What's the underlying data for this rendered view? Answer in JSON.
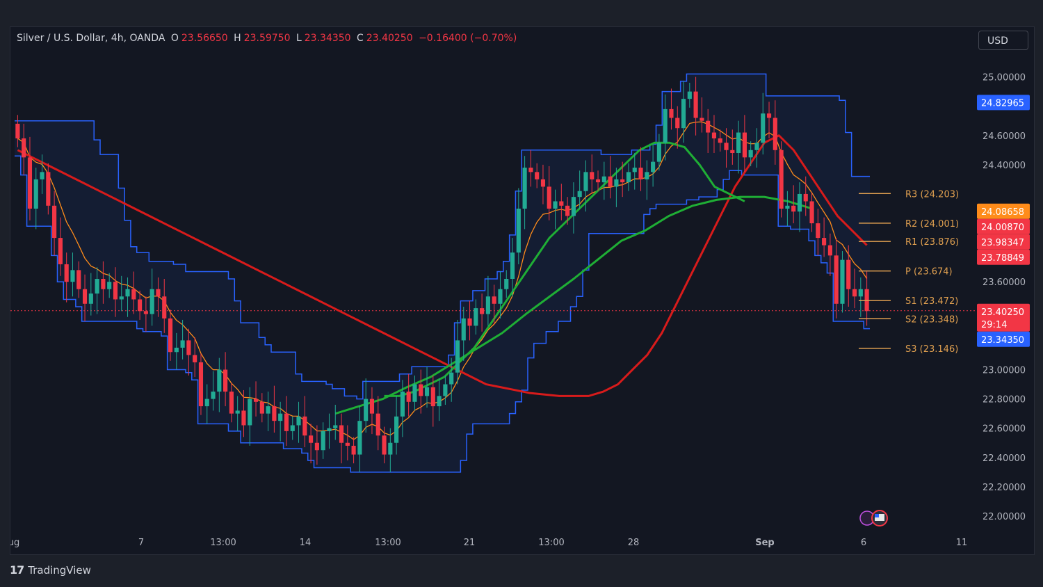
{
  "header": {
    "symbol": "Silver / U.S. Dollar, 4h, OANDA",
    "open_label": "O",
    "open": "23.56650",
    "high_label": "H",
    "high": "23.59750",
    "low_label": "L",
    "low": "23.34350",
    "close_label": "C",
    "close": "23.40250",
    "change": "−0.16400 (−0.70%)"
  },
  "currency": "USD",
  "footer": {
    "brand": "TradingView"
  },
  "colors": {
    "background": "#131722",
    "up": "#22ab94",
    "down": "#f23645",
    "band": "#2962ff",
    "ema_red": "#d81b1b",
    "ema_orange": "#ff8c1a",
    "ema_green": "#1fae35",
    "pivot": "#e0a050"
  },
  "chart_data": {
    "type": "candlestick",
    "price_axis": {
      "range": [
        21.9,
        25.15
      ],
      "ticks": [
        "25.00000",
        "24.60000",
        "24.40000",
        "23.60000",
        "23.00000",
        "22.80000",
        "22.60000",
        "22.40000",
        "22.20000",
        "22.00000"
      ]
    },
    "time_axis": {
      "labels": [
        "ug",
        "7",
        "13:00",
        "14",
        "13:00",
        "21",
        "13:00",
        "28",
        "Sep",
        "6",
        "11"
      ]
    },
    "pivots": [
      {
        "label": "R3 (24.203)",
        "value": 24.203
      },
      {
        "label": "R2 (24.001)",
        "value": 24.001
      },
      {
        "label": "R1 (23.876)",
        "value": 23.876
      },
      {
        "label": "P (23.674)",
        "value": 23.674
      },
      {
        "label": "S1 (23.472)",
        "value": 23.472
      },
      {
        "label": "S2 (23.348)",
        "value": 23.348
      },
      {
        "label": "S3 (23.146)",
        "value": 23.146
      }
    ],
    "price_tags": [
      {
        "text": "24.82965",
        "value": 24.82965,
        "color": "#2962ff"
      },
      {
        "text": "24.08658",
        "value": 24.08658,
        "color": "#ff8c1a"
      },
      {
        "text": "24.00870",
        "value": 24.0087,
        "color": "#f23645"
      },
      {
        "text": "23.98347",
        "value": 23.98347,
        "color": "#f23645"
      },
      {
        "text": "23.78849",
        "value": 23.78849,
        "color": "#f23645"
      },
      {
        "text": "23.40250",
        "value": 23.4025,
        "color": "#f23645",
        "countdown": "29:14"
      },
      {
        "text": "23.34350",
        "value": 23.3435,
        "color": "#2962ff"
      }
    ],
    "closes": [
      24.58,
      24.45,
      24.1,
      24.3,
      24.35,
      24.12,
      23.9,
      23.72,
      23.6,
      23.68,
      23.55,
      23.45,
      23.52,
      23.62,
      23.55,
      23.6,
      23.48,
      23.5,
      23.55,
      23.48,
      23.4,
      23.38,
      23.55,
      23.5,
      23.35,
      23.12,
      23.15,
      23.2,
      23.1,
      23.05,
      22.75,
      22.8,
      22.85,
      23.0,
      22.85,
      22.7,
      22.72,
      22.62,
      22.8,
      22.78,
      22.7,
      22.75,
      22.65,
      22.7,
      22.58,
      22.62,
      22.68,
      22.55,
      22.5,
      22.45,
      22.58,
      22.6,
      22.62,
      22.5,
      22.48,
      22.42,
      22.65,
      22.8,
      22.7,
      22.55,
      22.42,
      22.5,
      22.68,
      22.85,
      22.78,
      22.9,
      22.82,
      22.88,
      22.75,
      22.82,
      22.9,
      22.98,
      23.2,
      23.35,
      23.3,
      23.42,
      23.38,
      23.5,
      23.45,
      23.55,
      23.62,
      23.8,
      24.1,
      24.38,
      24.35,
      24.3,
      24.25,
      24.1,
      24.15,
      24.12,
      24.05,
      24.18,
      24.22,
      24.35,
      24.3,
      24.28,
      24.32,
      24.25,
      24.3,
      24.28,
      24.35,
      24.38,
      24.3,
      24.35,
      24.42,
      24.55,
      24.78,
      24.72,
      24.65,
      24.85,
      24.9,
      24.72,
      24.7,
      24.62,
      24.58,
      24.55,
      24.5,
      24.48,
      24.62,
      24.45,
      24.5,
      24.55,
      24.75,
      24.72,
      24.5,
      24.1,
      24.12,
      24.08,
      24.2,
      24.15,
      24.0,
      23.9,
      23.85,
      23.78,
      23.45,
      23.75,
      23.55,
      23.5,
      23.55,
      23.4
    ],
    "ma_red": [
      24.5,
      24.45,
      24.4,
      24.35,
      24.3,
      24.25,
      24.2,
      24.15,
      24.1,
      24.05,
      24.0,
      23.95,
      23.9,
      23.85,
      23.8,
      23.75,
      23.7,
      23.65,
      23.6,
      23.55,
      23.5,
      23.45,
      23.4,
      23.35,
      23.3,
      23.25,
      23.2,
      23.15,
      23.1,
      23.05,
      23.0,
      22.95,
      22.9,
      22.88,
      22.86,
      22.84,
      22.83,
      22.82,
      22.82,
      22.82,
      22.85,
      22.9,
      23.0,
      23.1,
      23.25,
      23.45,
      23.65,
      23.85,
      24.05,
      24.25,
      24.4,
      24.55,
      24.6,
      24.5,
      24.35,
      24.2,
      24.05,
      23.95,
      23.85
    ],
    "ma_green": [
      22.82,
      22.82,
      22.85,
      22.9,
      22.95,
      23.05,
      23.15,
      23.3,
      23.45,
      23.6,
      23.75,
      23.9,
      24.0,
      24.1,
      24.2,
      24.3,
      24.4,
      24.5,
      24.55,
      24.55,
      24.52,
      24.4,
      24.25,
      24.2,
      24.15
    ],
    "ma_green2": [
      22.7,
      22.75,
      22.8,
      22.88,
      22.95,
      23.05,
      23.15,
      23.25,
      23.38,
      23.5,
      23.62,
      23.75,
      23.88,
      23.95,
      24.05,
      24.12,
      24.16,
      24.18,
      24.18,
      24.15,
      24.1
    ]
  }
}
